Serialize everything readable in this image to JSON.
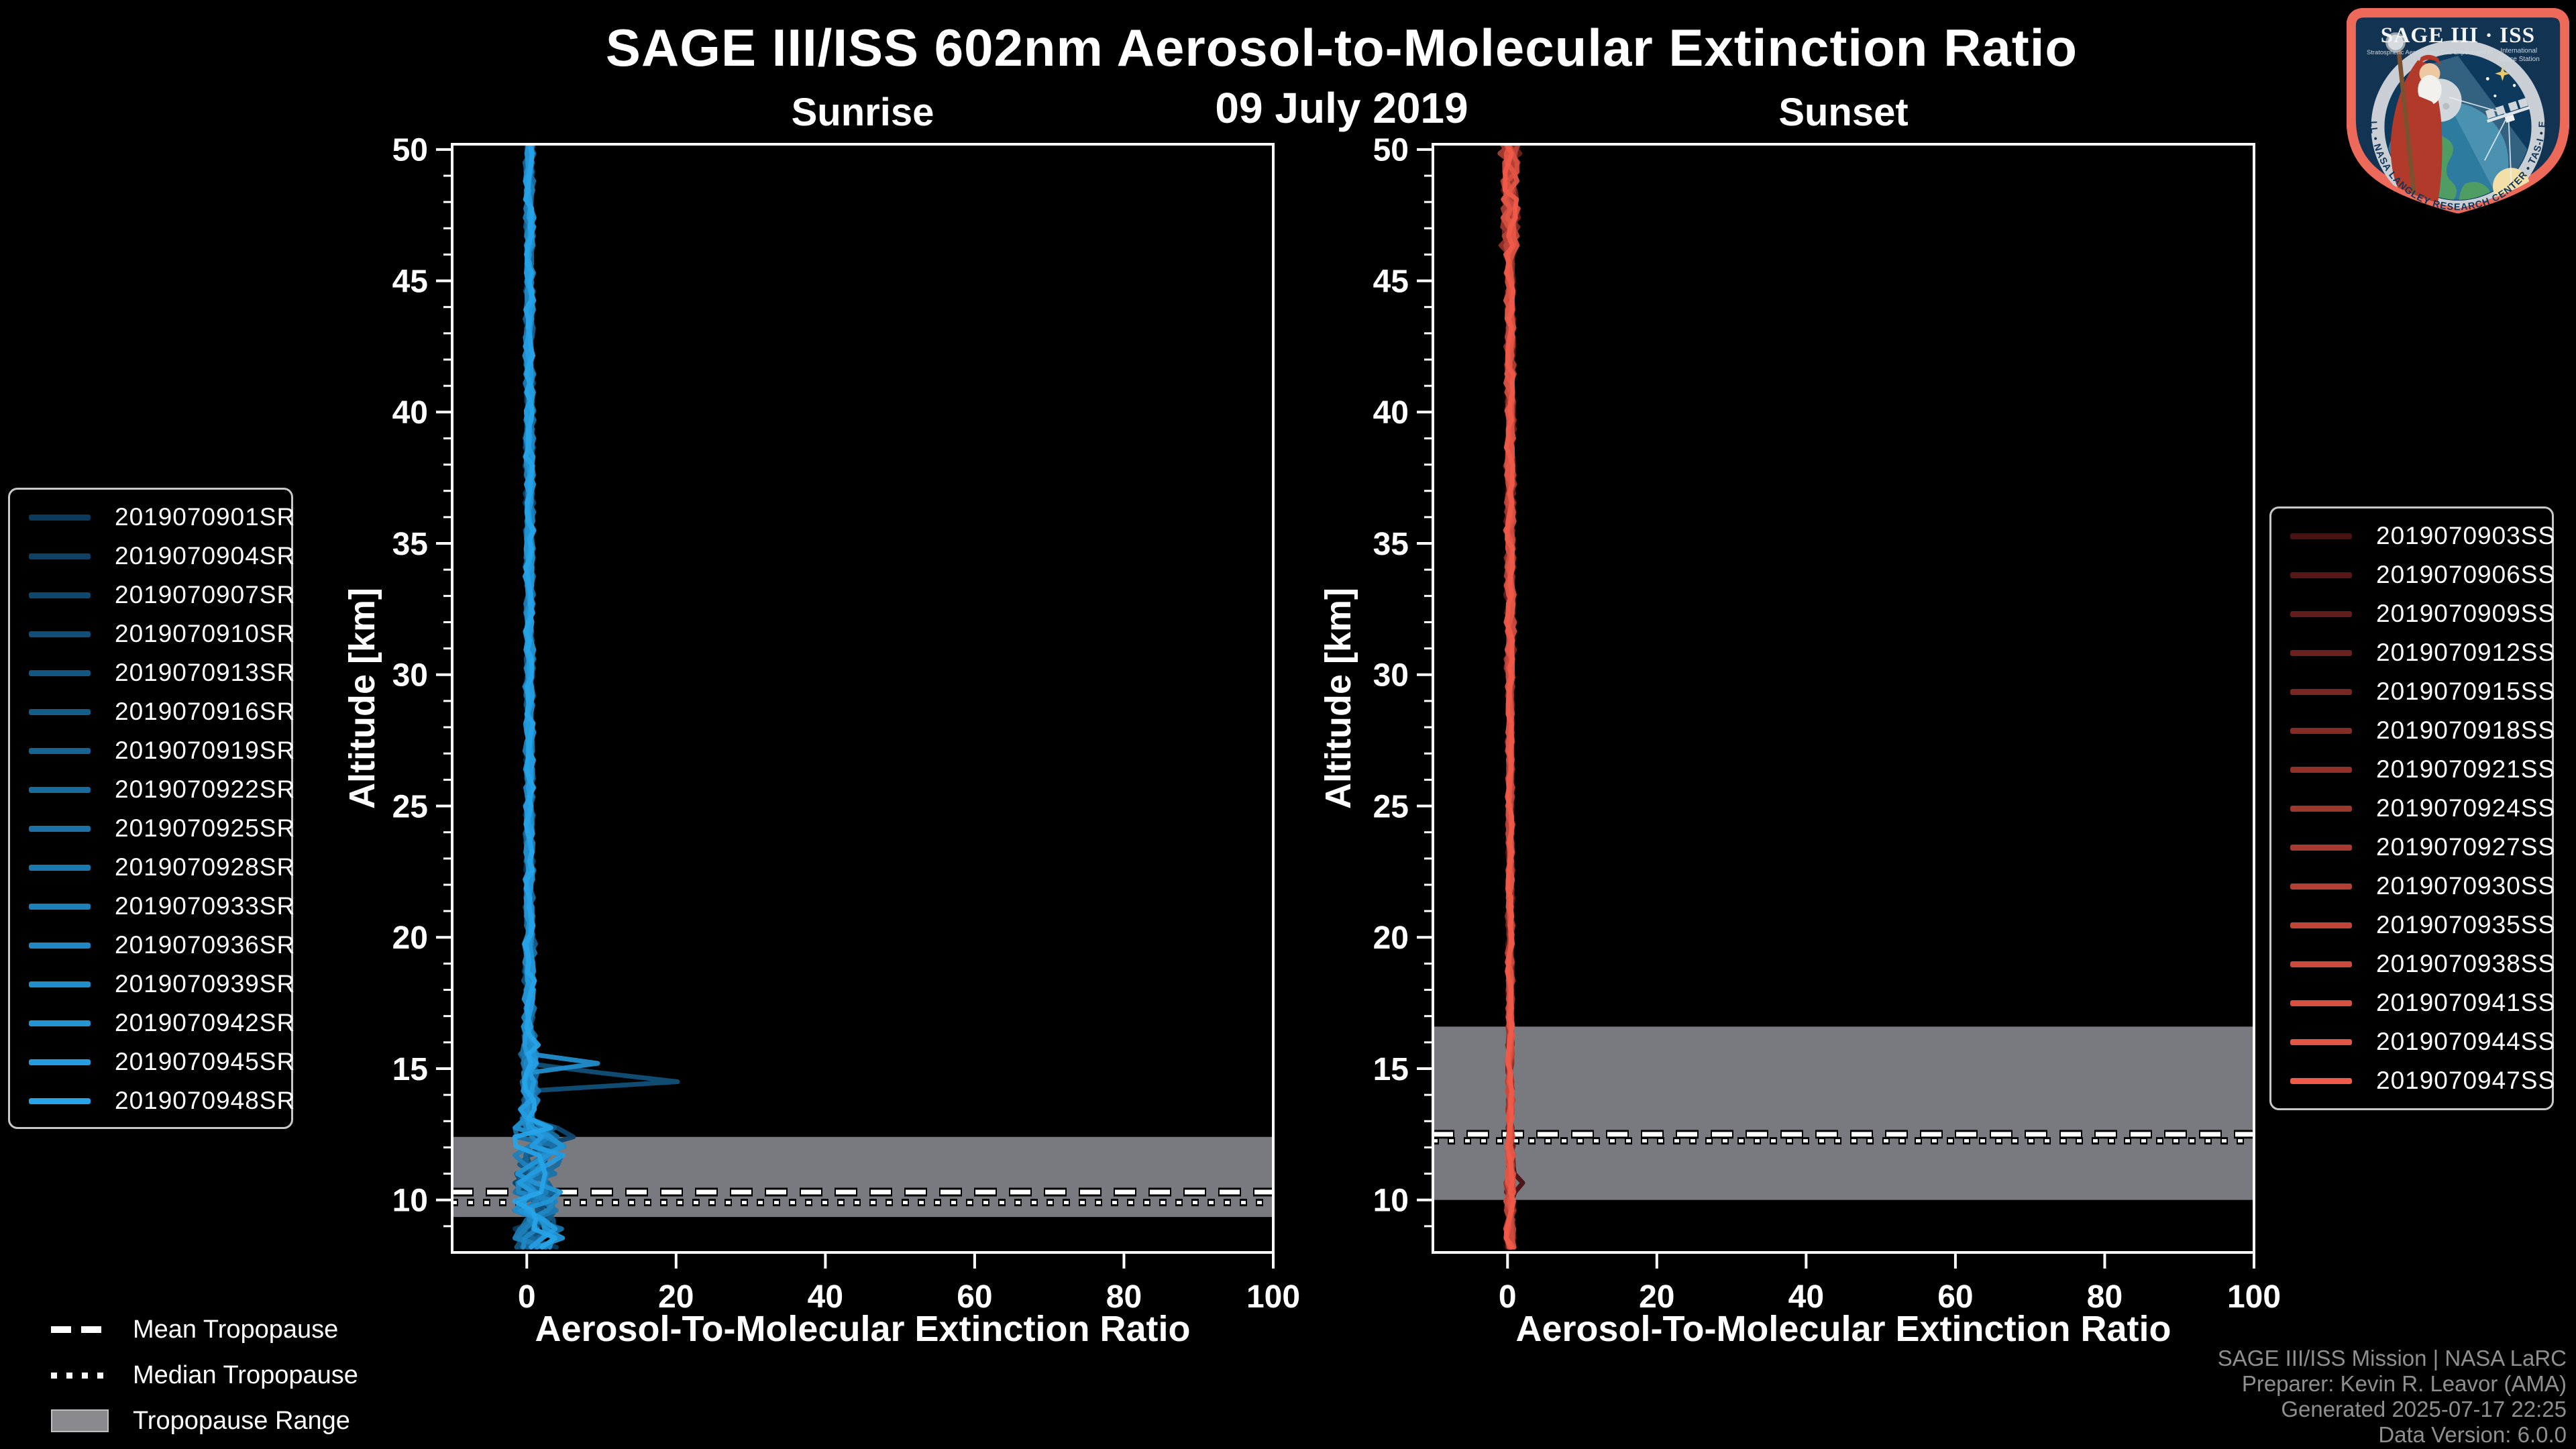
{
  "header": {
    "title": "SAGE III/ISS 602nm Aerosol-to-Molecular Extinction Ratio",
    "date": "09 July 2019"
  },
  "tropopause_legend": {
    "mean": "Mean Tropopause",
    "median": "Median Tropopause",
    "range": "Tropopause Range"
  },
  "footer": {
    "lines": [
      "SAGE III/ISS Mission | NASA LaRC",
      "Preparer: Kevin R. Leavor (AMA)",
      "Generated 2025-07-17 22:25",
      "Data Version: 6.0.0"
    ]
  },
  "logo": {
    "title": "SAGE III · ISS",
    "subtitle_left": "Stratospheric Aerosol and Gas Experiment III",
    "subtitle_right_1": "International",
    "subtitle_right_2": "Space Station",
    "border_text": "BALL • NASA LANGLEY RESEARCH CENTER • TAS-I • ESA",
    "border_color": "#ed6a5a",
    "field_color": "#123352"
  },
  "colors": {
    "axis": "#ffffff",
    "background": "#000000",
    "tropopause_band": "#83838b",
    "footer_text": "#8f8f8f"
  },
  "chart_data": [
    {
      "type": "line",
      "panel": "sunrise",
      "title": "Sunrise",
      "xlabel": "Aerosol-To-Molecular Extinction Ratio",
      "ylabel": "Altitude [km]",
      "x_range": [
        -10,
        100
      ],
      "y_range": [
        8,
        50.2
      ],
      "x_ticks": [
        0,
        20,
        40,
        60,
        80,
        100
      ],
      "y_ticks": [
        10,
        15,
        20,
        25,
        30,
        35,
        40,
        45,
        50
      ],
      "grid": false,
      "legend_position": "outside-left",
      "tropopause": {
        "mean_km": 10.3,
        "median_km": 9.9,
        "range_km": [
          9.35,
          12.4
        ]
      },
      "profile_note": "16 sunrise extinction-ratio profiles hugging 0 (approx 0-1.5) from 50 km down to 8 km; zigzag excursions up to ~8 below 13 km; one profile spikes to ~23 near 14.5 km, another to ~9.5 near 15.2 km",
      "noise": {
        "amp_by_alt": [
          [
            8,
            11,
            2.6
          ],
          [
            11,
            13,
            3.2
          ],
          [
            13,
            16,
            0.9
          ],
          [
            16,
            20,
            0.6
          ],
          [
            20,
            50.3,
            0.45
          ]
        ],
        "center_by_alt": [
          [
            8,
            13,
            1.1
          ],
          [
            13,
            50.3,
            0.35
          ]
        ],
        "min_ratio": -1.6
      },
      "series": [
        {
          "name": "2019070901SR",
          "color": "#0b3a5c",
          "seed": 1
        },
        {
          "name": "2019070904SR",
          "color": "#0d4165",
          "seed": 2
        },
        {
          "name": "2019070907SR",
          "color": "#0f486f",
          "seed": 3,
          "spikes": [
            {
              "alt_top": 13.0,
              "alt_peak": 12.5,
              "alt_bottom": 11.95,
              "peak": 7.5
            }
          ]
        },
        {
          "name": "2019070910SR",
          "color": "#114f78",
          "seed": 4,
          "spikes": [
            {
              "alt_top": 15.05,
              "alt_peak": 14.55,
              "alt_bottom": 14.15,
              "peak": 23
            }
          ]
        },
        {
          "name": "2019070913SR",
          "color": "#125681",
          "seed": 5
        },
        {
          "name": "2019070916SR",
          "color": "#145d8b",
          "seed": 6
        },
        {
          "name": "2019070919SR",
          "color": "#166494",
          "seed": 7
        },
        {
          "name": "2019070922SR",
          "color": "#186b9d",
          "seed": 8,
          "spikes": [
            {
              "alt_top": 12.1,
              "alt_peak": 11.55,
              "alt_bottom": 11.0,
              "peak": 6.2
            }
          ]
        },
        {
          "name": "2019070925SR",
          "color": "#1a72a7",
          "seed": 9
        },
        {
          "name": "2019070928SR",
          "color": "#1c79b0",
          "seed": 10
        },
        {
          "name": "2019070933SR",
          "color": "#1e80b9",
          "seed": 11
        },
        {
          "name": "2019070936SR",
          "color": "#2087c3",
          "seed": 12
        },
        {
          "name": "2019070939SR",
          "color": "#218ecc",
          "seed": 13,
          "spikes": [
            {
              "alt_top": 15.55,
              "alt_peak": 15.2,
              "alt_bottom": 14.9,
              "peak": 9.5
            }
          ]
        },
        {
          "name": "2019070942SR",
          "color": "#2395d5",
          "seed": 14,
          "spikes": [
            {
              "alt_top": 10.7,
              "alt_peak": 10.2,
              "alt_bottom": 9.7,
              "peak": 5.5
            }
          ]
        },
        {
          "name": "2019070945SR",
          "color": "#259cdf",
          "seed": 15
        },
        {
          "name": "2019070948SR",
          "color": "#27a3e8",
          "seed": 16
        }
      ]
    },
    {
      "type": "line",
      "panel": "sunset",
      "title": "Sunset",
      "xlabel": "Aerosol-To-Molecular Extinction Ratio",
      "ylabel": "Altitude [km]",
      "x_range": [
        -10,
        100
      ],
      "y_range": [
        8,
        50.2
      ],
      "x_ticks": [
        0,
        20,
        40,
        60,
        80,
        100
      ],
      "y_ticks": [
        10,
        15,
        20,
        25,
        30,
        35,
        40,
        45,
        50
      ],
      "grid": false,
      "legend_position": "outside-right",
      "tropopause": {
        "mean_km": 12.5,
        "median_km": 12.25,
        "range_km": [
          10.0,
          16.6
        ]
      },
      "profile_note": "15 sunset extinction-ratio profiles in a tight bundle near 0 (approx 0-1) from 50 km to 8 km; wiggle amplitude larger (~±1.5) above 46 km; tiny excursion ~2 near 10.6 km",
      "noise": {
        "amp_by_alt": [
          [
            8,
            12,
            0.5
          ],
          [
            12,
            30,
            0.3
          ],
          [
            30,
            46,
            0.45
          ],
          [
            46,
            50.3,
            0.95
          ]
        ],
        "center_by_alt": [
          [
            8,
            50.3,
            0.35
          ]
        ],
        "min_ratio": -1.2
      },
      "series": [
        {
          "name": "2019070903SS",
          "color": "#4a1212",
          "seed": 21,
          "spikes": [
            {
              "alt_top": 11.1,
              "alt_peak": 10.6,
              "alt_bottom": 10.2,
              "peak": 2.2
            }
          ]
        },
        {
          "name": "2019070906SS",
          "color": "#561716",
          "seed": 22
        },
        {
          "name": "2019070909SS",
          "color": "#621c1a",
          "seed": 23
        },
        {
          "name": "2019070912SS",
          "color": "#6d211e",
          "seed": 24
        },
        {
          "name": "2019070915SS",
          "color": "#792722",
          "seed": 25
        },
        {
          "name": "2019070918SS",
          "color": "#852c26",
          "seed": 26
        },
        {
          "name": "2019070921SS",
          "color": "#913129",
          "seed": 27
        },
        {
          "name": "2019070924SS",
          "color": "#9d362d",
          "seed": 28
        },
        {
          "name": "2019070927SS",
          "color": "#a83b31",
          "seed": 29
        },
        {
          "name": "2019070930SS",
          "color": "#b44035",
          "seed": 30
        },
        {
          "name": "2019070935SS",
          "color": "#c04539",
          "seed": 31
        },
        {
          "name": "2019070938SS",
          "color": "#cc4b3d",
          "seed": 32
        },
        {
          "name": "2019070941SS",
          "color": "#d75041",
          "seed": 33
        },
        {
          "name": "2019070944SS",
          "color": "#e35545",
          "seed": 34
        },
        {
          "name": "2019070947SS",
          "color": "#ef5a49",
          "seed": 35
        }
      ]
    }
  ]
}
